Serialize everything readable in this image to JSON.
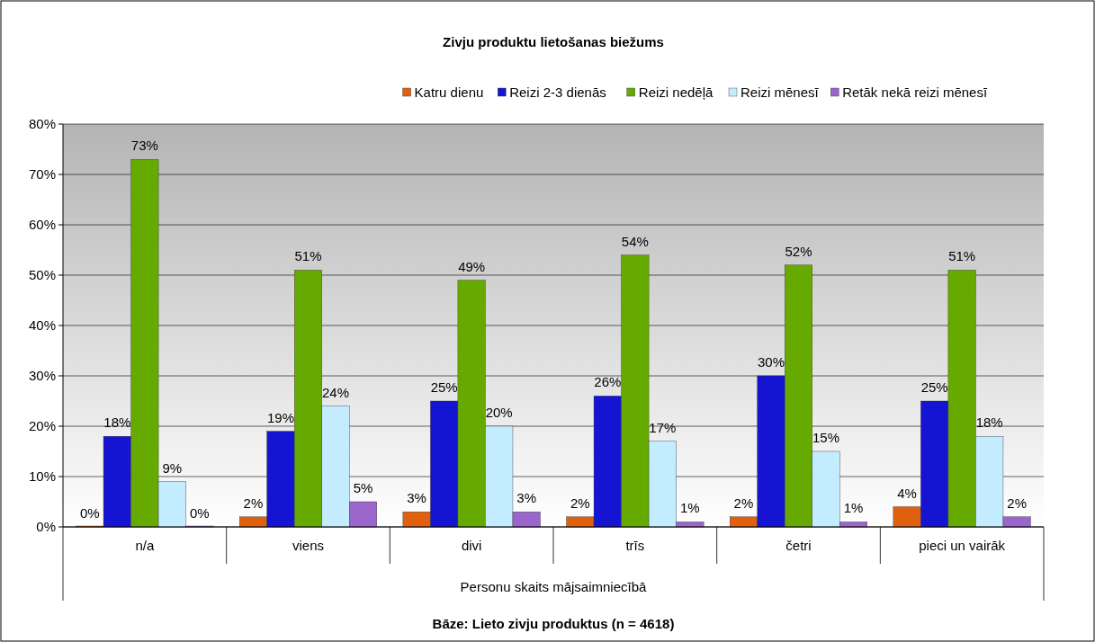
{
  "chart_data": {
    "type": "bar",
    "title": "Zivju produktu lietošanas biežums",
    "xlabel": "Personu skaits mājsaimniecībā",
    "annotations": [
      "Bāze:  Lieto zivju produktus (n = 4618)"
    ],
    "categories": [
      "n/a",
      "viens",
      "divi",
      "trīs",
      "četri",
      "pieci un vairāk"
    ],
    "series": [
      {
        "name": "Katru dienu",
        "color": "#e0600e",
        "values": [
          0,
          2,
          3,
          2,
          2,
          4
        ],
        "value_labels": [
          "0%",
          "2%",
          "3%",
          "2%",
          "2%",
          "4%"
        ]
      },
      {
        "name": "Reizi 2-3 dienās",
        "color": "#1414d2",
        "values": [
          18,
          19,
          25,
          26,
          30,
          25
        ],
        "value_labels": [
          "18%",
          "19%",
          "25%",
          "26%",
          "30%",
          "25%"
        ]
      },
      {
        "name": "Reizi nedēļā",
        "color": "#66aa00",
        "values": [
          73,
          51,
          49,
          54,
          52,
          51
        ],
        "value_labels": [
          "73%",
          "51%",
          "49%",
          "54%",
          "52%",
          "51%"
        ]
      },
      {
        "name": "Reizi mēnesī",
        "color": "#c4ecff",
        "values": [
          9,
          24,
          20,
          17,
          15,
          18
        ],
        "value_labels": [
          "9%",
          "24%",
          "20%",
          "17%",
          "15%",
          "18%"
        ]
      },
      {
        "name": "Retāk nekā reizi mēnesī",
        "color": "#9a66cc",
        "values": [
          0,
          5,
          3,
          1,
          1,
          2
        ],
        "value_labels": [
          "0%",
          "5%",
          "3%",
          "1%",
          "1%",
          "2%"
        ]
      }
    ],
    "ylim": [
      0,
      80
    ],
    "yticks": [
      {
        "value": 0,
        "label": "0%"
      },
      {
        "value": 10,
        "label": "10%"
      },
      {
        "value": 20,
        "label": "20%"
      },
      {
        "value": 30,
        "label": "30%"
      },
      {
        "value": 40,
        "label": "40%"
      },
      {
        "value": 50,
        "label": "50%"
      },
      {
        "value": 60,
        "label": "60%"
      },
      {
        "value": 70,
        "label": "70%"
      },
      {
        "value": 80,
        "label": "80%"
      }
    ],
    "grid": "y",
    "legend": "top"
  }
}
